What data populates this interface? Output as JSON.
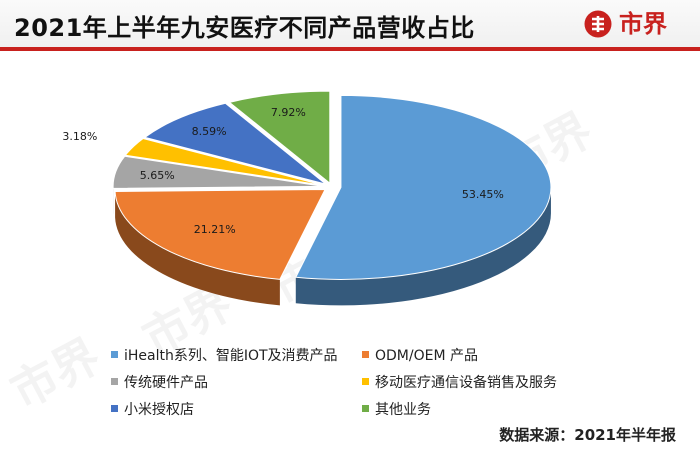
{
  "header": {
    "title": "2021年上半年九安医疗不同产品营收占比",
    "brand_name": "市界",
    "accent_color": "#c8211e"
  },
  "watermark_text": "市界",
  "source_note": "数据来源：2021年半年报",
  "chart_data": {
    "type": "pie",
    "style": "3d-exploded",
    "legend_position": "bottom",
    "series": [
      {
        "label": "iHealth系列、智能IOT及消费产品",
        "value": 53.45,
        "value_label": "53.45%",
        "color": "#5b9bd5"
      },
      {
        "label": "ODM/OEM 产品",
        "value": 21.21,
        "value_label": "21.21%",
        "color": "#ed7d31"
      },
      {
        "label": "传统硬件产品",
        "value": 5.65,
        "value_label": "5.65%",
        "color": "#a5a5a5"
      },
      {
        "label": "移动医疗通信设备销售及服务",
        "value": 3.18,
        "value_label": "3.18%",
        "color": "#ffc000"
      },
      {
        "label": "小米授权店",
        "value": 8.59,
        "value_label": "8.59%",
        "color": "#4472c4"
      },
      {
        "label": "其他业务",
        "value": 7.92,
        "value_label": "7.92%",
        "color": "#70ad47"
      }
    ]
  }
}
